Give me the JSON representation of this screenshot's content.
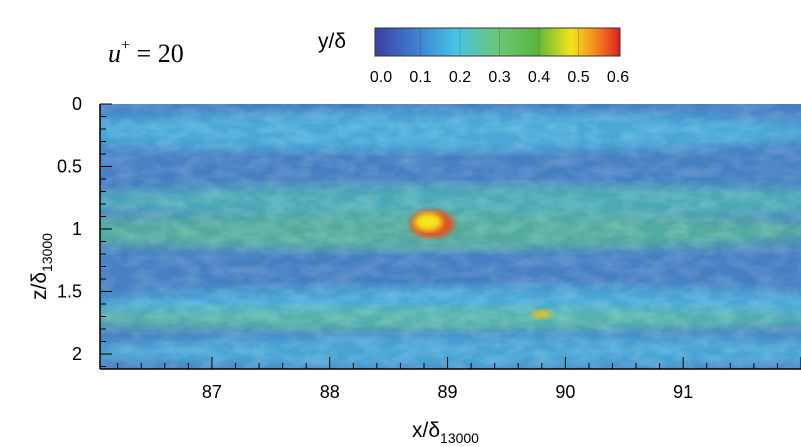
{
  "chart_data": {
    "type": "heatmap",
    "annotation": {
      "text": "u",
      "sup": "+",
      "rest": " = 20"
    },
    "colorbar": {
      "label": "y/δ",
      "ticks": [
        "0.0",
        "0.1",
        "0.2",
        "0.3",
        "0.4",
        "0.5",
        "0.6"
      ],
      "range": [
        0.0,
        0.6
      ],
      "colors": [
        "#3a3fa8",
        "#3f7fd0",
        "#45c4e6",
        "#7fd08a",
        "#63b83c",
        "#b8d83a",
        "#f5e51a",
        "#f58a1e",
        "#e02020"
      ]
    },
    "x_axis": {
      "label": "x/δ",
      "label_sub": "13000",
      "ticks": [
        "87",
        "88",
        "89",
        "90",
        "91"
      ],
      "tick_values": [
        87,
        88,
        89,
        90,
        91
      ],
      "range": [
        86.05,
        92.0
      ]
    },
    "y_axis": {
      "label": "z/δ",
      "label_sub": "13000",
      "ticks": [
        "0",
        "0.5",
        "1",
        "1.5",
        "2"
      ],
      "tick_values": [
        0,
        0.5,
        1,
        1.5,
        2
      ],
      "range": [
        0,
        2.12
      ],
      "inverted": true
    },
    "features": {
      "streaks_center_z": [
        0.22,
        0.78,
        1.05,
        1.65,
        1.98
      ],
      "hotspot": {
        "x": 88.87,
        "z": 0.96,
        "value": 0.55
      },
      "hotspot2": {
        "x": 89.8,
        "z": 1.65,
        "value": 0.45
      }
    }
  }
}
